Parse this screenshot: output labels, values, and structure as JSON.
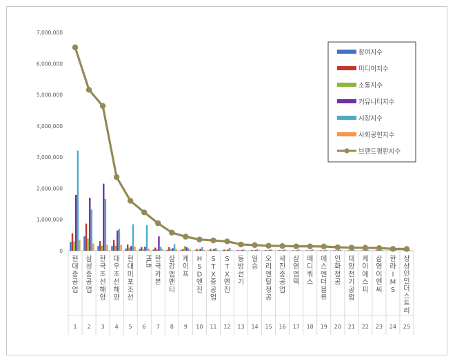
{
  "chart_data": {
    "type": "bar",
    "title": "",
    "xlabel": "",
    "ylabel": "",
    "ylim": [
      0,
      7000000
    ],
    "y_ticks": [
      "0",
      "1,000,000",
      "2,000,000",
      "3,000,000",
      "4,000,000",
      "5,000,000",
      "6,000,000",
      "7,000,000"
    ],
    "grid": false,
    "legend_position": "top-right",
    "categories": [
      "현대중공업",
      "삼성중공업",
      "한국조선해양",
      "대우조선해양",
      "현대미포조선",
      "HLB",
      "한국카본",
      "삼강엠앤티",
      "케이프",
      "HSD엔진",
      "STX중공업",
      "STX엔진",
      "동방선기",
      "일승",
      "오리엔탈정공",
      "세진중공업",
      "삼영엠텍",
      "메디쿼스",
      "에스엔더블류",
      "인화정공",
      "대양전기공업",
      "케이에스피",
      "삼영이엔씨",
      "한라IMS",
      "상상인인더스트리"
    ],
    "ranks": [
      "1",
      "2",
      "3",
      "4",
      "5",
      "6",
      "7",
      "8",
      "9",
      "10",
      "11",
      "12",
      "13",
      "14",
      "15",
      "16",
      "17",
      "18",
      "19",
      "20",
      "21",
      "22",
      "23",
      "24",
      "25"
    ],
    "series": [
      {
        "name": "참여지수",
        "kind": "bar",
        "color": "#4472c4",
        "values": [
          280000,
          460000,
          150000,
          150000,
          70000,
          60000,
          40000,
          30000,
          20000,
          15000,
          12000,
          12000,
          8000,
          8000,
          7000,
          7000,
          6000,
          6000,
          5000,
          5000,
          4000,
          4000,
          3000,
          3000,
          3000
        ]
      },
      {
        "name": "미디어지수",
        "kind": "bar",
        "color": "#c0392b",
        "values": [
          560000,
          870000,
          310000,
          350000,
          200000,
          120000,
          100000,
          110000,
          50000,
          60000,
          55000,
          40000,
          20000,
          20000,
          20000,
          20000,
          15000,
          15000,
          15000,
          15000,
          15000,
          15000,
          15000,
          10000,
          10000
        ]
      },
      {
        "name": "소통지수",
        "kind": "bar",
        "color": "#8cb63c",
        "values": [
          300000,
          390000,
          160000,
          160000,
          100000,
          60000,
          50000,
          50000,
          150000,
          30000,
          25000,
          20000,
          10000,
          10000,
          10000,
          10000,
          8000,
          8000,
          8000,
          8000,
          6000,
          6000,
          6000,
          5000,
          5000
        ]
      },
      {
        "name": "커뮤니티지수",
        "kind": "bar",
        "color": "#7030a0",
        "values": [
          1790000,
          1700000,
          2150000,
          650000,
          150000,
          130000,
          460000,
          80000,
          120000,
          60000,
          60000,
          40000,
          20000,
          20000,
          20000,
          20000,
          15000,
          15000,
          15000,
          15000,
          12000,
          12000,
          12000,
          10000,
          10000
        ]
      },
      {
        "name": "시장지수",
        "kind": "bar",
        "color": "#4bacc6",
        "values": [
          3210000,
          1320000,
          1660000,
          700000,
          850000,
          820000,
          130000,
          210000,
          80000,
          110000,
          80000,
          90000,
          50000,
          50000,
          40000,
          40000,
          40000,
          40000,
          30000,
          30000,
          30000,
          30000,
          30000,
          20000,
          20000
        ]
      },
      {
        "name": "사회공헌지수",
        "kind": "bar",
        "color": "#f79646",
        "values": [
          340000,
          230000,
          190000,
          190000,
          130000,
          70000,
          60000,
          60000,
          40000,
          30000,
          25000,
          20000,
          15000,
          15000,
          12000,
          12000,
          10000,
          10000,
          10000,
          10000,
          8000,
          8000,
          8000,
          8000,
          8000
        ]
      },
      {
        "name": "브랜드평판지수",
        "kind": "line",
        "color": "#948a54",
        "values": [
          6520000,
          5160000,
          4640000,
          2360000,
          1600000,
          1230000,
          880000,
          580000,
          450000,
          360000,
          330000,
          300000,
          200000,
          180000,
          160000,
          150000,
          140000,
          140000,
          135000,
          110000,
          100000,
          95000,
          85000,
          60000,
          55000
        ]
      }
    ]
  }
}
